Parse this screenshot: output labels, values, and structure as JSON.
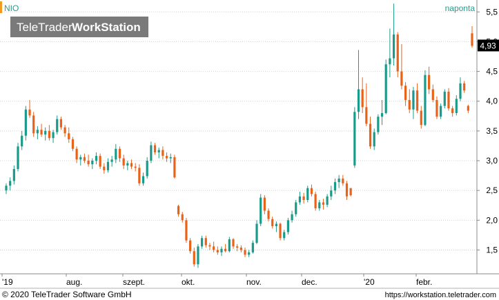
{
  "header": {
    "symbol": "NIO",
    "interval": "naponta",
    "logo": {
      "brand": "TeleTrader",
      "product": "WorkStation"
    }
  },
  "footer": {
    "copyright": "© 2020 TeleTrader Software GmbH",
    "url": "https://workstation.teletrader.com"
  },
  "colors": {
    "up": "#1a9a8a",
    "down": "#e8621a",
    "grid": "#d0d0d0",
    "header_text": "#2a9a88",
    "accent_bar": "#f29a1e",
    "price_label_bg": "#000000",
    "logo_bg": "#7a7a7a"
  },
  "chart_data": {
    "type": "candlestick",
    "title": "NIO",
    "interval": "naponta",
    "current_price_label": "4,93",
    "current_price": 4.93,
    "ylim": [
      1.1,
      5.7
    ],
    "yticks": [
      1.5,
      2.0,
      2.5,
      3.0,
      3.5,
      4.0,
      4.5,
      5.0,
      5.5
    ],
    "ytick_labels": [
      "1,5",
      "2,0",
      "2,5",
      "3,0",
      "3,5",
      "4,0",
      "4,5",
      "5,0",
      "5,5"
    ],
    "xtick_labels": [
      "'19",
      "aug.",
      "szept.",
      "okt.",
      "nov.",
      "dec.",
      "'20",
      "febr."
    ],
    "grid": true,
    "candles": [
      [
        2.5,
        2.62,
        2.44,
        2.58
      ],
      [
        2.58,
        2.72,
        2.5,
        2.66
      ],
      [
        2.66,
        2.92,
        2.6,
        2.86
      ],
      [
        2.86,
        3.3,
        2.82,
        3.24
      ],
      [
        3.24,
        3.5,
        3.18,
        3.42
      ],
      [
        3.42,
        3.92,
        3.34,
        3.86
      ],
      [
        3.86,
        4.02,
        3.72,
        3.76
      ],
      [
        3.76,
        3.82,
        3.4,
        3.46
      ],
      [
        3.46,
        3.58,
        3.36,
        3.52
      ],
      [
        3.52,
        3.62,
        3.4,
        3.44
      ],
      [
        3.44,
        3.56,
        3.34,
        3.5
      ],
      [
        3.5,
        3.6,
        3.34,
        3.38
      ],
      [
        3.38,
        3.52,
        3.3,
        3.48
      ],
      [
        3.48,
        3.76,
        3.44,
        3.7
      ],
      [
        3.7,
        3.74,
        3.52,
        3.56
      ],
      [
        3.56,
        3.6,
        3.4,
        3.46
      ],
      [
        3.46,
        3.56,
        3.3,
        3.36
      ],
      [
        3.36,
        3.4,
        3.16,
        3.2
      ],
      [
        3.2,
        3.24,
        2.96,
        3.02
      ],
      [
        3.02,
        3.1,
        2.92,
        3.06
      ],
      [
        3.06,
        3.12,
        2.96,
        3.0
      ],
      [
        3.0,
        3.1,
        2.9,
        2.94
      ],
      [
        2.94,
        3.04,
        2.86,
        3.0
      ],
      [
        3.0,
        3.14,
        2.94,
        3.08
      ],
      [
        3.08,
        3.12,
        2.86,
        2.9
      ],
      [
        2.9,
        2.96,
        2.78,
        2.84
      ],
      [
        2.84,
        3.04,
        2.8,
        2.98
      ],
      [
        2.98,
        3.08,
        2.9,
        3.02
      ],
      [
        3.02,
        3.28,
        2.96,
        3.2
      ],
      [
        3.2,
        3.24,
        2.98,
        3.04
      ],
      [
        3.04,
        3.1,
        2.86,
        2.92
      ],
      [
        2.92,
        3.0,
        2.84,
        2.96
      ],
      [
        2.96,
        3.02,
        2.86,
        2.9
      ],
      [
        2.9,
        2.96,
        2.82,
        2.88
      ],
      [
        2.88,
        2.94,
        2.58,
        2.62
      ],
      [
        2.62,
        2.8,
        2.58,
        2.74
      ],
      [
        2.74,
        3.06,
        2.7,
        3.0
      ],
      [
        3.0,
        3.32,
        2.96,
        3.26
      ],
      [
        3.26,
        3.3,
        3.1,
        3.14
      ],
      [
        3.14,
        3.22,
        3.04,
        3.18
      ],
      [
        3.18,
        3.24,
        3.02,
        3.08
      ],
      [
        3.08,
        3.14,
        2.98,
        3.04
      ],
      [
        3.04,
        3.12,
        2.96,
        3.06
      ],
      [
        3.06,
        3.1,
        2.7,
        2.72
      ],
      [
        2.24,
        2.26,
        2.06,
        2.1
      ],
      [
        2.1,
        2.14,
        1.96,
        2.0
      ],
      [
        2.0,
        2.04,
        1.62,
        1.66
      ],
      [
        1.66,
        1.7,
        1.44,
        1.48
      ],
      [
        1.48,
        1.54,
        1.22,
        1.26
      ],
      [
        1.26,
        1.6,
        1.2,
        1.56
      ],
      [
        1.56,
        1.74,
        1.52,
        1.7
      ],
      [
        1.7,
        1.74,
        1.54,
        1.58
      ],
      [
        1.58,
        1.62,
        1.5,
        1.56
      ],
      [
        1.56,
        1.64,
        1.46,
        1.5
      ],
      [
        1.5,
        1.56,
        1.42,
        1.46
      ],
      [
        1.46,
        1.56,
        1.4,
        1.52
      ],
      [
        1.52,
        1.6,
        1.46,
        1.48
      ],
      [
        1.48,
        1.72,
        1.46,
        1.68
      ],
      [
        1.68,
        1.7,
        1.52,
        1.56
      ],
      [
        1.56,
        1.6,
        1.48,
        1.54
      ],
      [
        1.54,
        1.58,
        1.46,
        1.5
      ],
      [
        1.5,
        1.54,
        1.38,
        1.42
      ],
      [
        1.42,
        1.5,
        1.38,
        1.46
      ],
      [
        1.46,
        1.66,
        1.44,
        1.62
      ],
      [
        1.62,
        2.0,
        1.6,
        1.94
      ],
      [
        1.94,
        2.44,
        1.9,
        2.38
      ],
      [
        2.38,
        2.42,
        2.1,
        2.16
      ],
      [
        2.16,
        2.2,
        1.98,
        2.02
      ],
      [
        2.02,
        2.06,
        1.86,
        1.9
      ],
      [
        1.9,
        1.98,
        1.8,
        1.94
      ],
      [
        1.94,
        1.96,
        1.66,
        1.7
      ],
      [
        1.7,
        1.84,
        1.66,
        1.8
      ],
      [
        1.8,
        2.04,
        1.76,
        2.0
      ],
      [
        2.0,
        2.16,
        1.96,
        2.1
      ],
      [
        2.1,
        2.34,
        2.06,
        2.3
      ],
      [
        2.3,
        2.48,
        2.26,
        2.4
      ],
      [
        2.4,
        2.46,
        2.28,
        2.34
      ],
      [
        2.34,
        2.58,
        2.3,
        2.54
      ],
      [
        2.54,
        2.6,
        2.4,
        2.44
      ],
      [
        2.44,
        2.48,
        2.16,
        2.2
      ],
      [
        2.2,
        2.34,
        2.16,
        2.3
      ],
      [
        2.3,
        2.36,
        2.18,
        2.26
      ],
      [
        2.26,
        2.44,
        2.22,
        2.4
      ],
      [
        2.4,
        2.58,
        2.34,
        2.5
      ],
      [
        2.5,
        2.7,
        2.44,
        2.64
      ],
      [
        2.64,
        2.76,
        2.54,
        2.7
      ],
      [
        2.7,
        2.76,
        2.58,
        2.62
      ],
      [
        2.62,
        2.66,
        2.34,
        2.4
      ],
      [
        2.54,
        2.54,
        2.4,
        2.42
      ],
      [
        2.92,
        3.9,
        2.88,
        3.82
      ],
      [
        3.82,
        4.86,
        3.7,
        4.2
      ],
      [
        4.2,
        4.4,
        3.8,
        3.9
      ],
      [
        3.9,
        4.3,
        3.58,
        3.62
      ],
      [
        3.62,
        3.74,
        3.2,
        3.24
      ],
      [
        3.24,
        3.54,
        3.18,
        3.48
      ],
      [
        3.48,
        3.78,
        3.44,
        3.74
      ],
      [
        3.74,
        4.02,
        3.6,
        3.8
      ],
      [
        3.8,
        4.7,
        3.78,
        4.62
      ],
      [
        4.62,
        5.22,
        4.4,
        4.72
      ],
      [
        4.72,
        5.64,
        4.6,
        5.12
      ],
      [
        5.12,
        5.16,
        4.4,
        4.5
      ],
      [
        4.5,
        4.96,
        4.2,
        4.26
      ],
      [
        4.26,
        4.32,
        3.92,
        4.02
      ],
      [
        4.02,
        4.2,
        3.8,
        3.86
      ],
      [
        3.86,
        4.24,
        3.7,
        4.18
      ],
      [
        4.18,
        4.3,
        3.8,
        3.84
      ],
      [
        3.84,
        3.92,
        3.54,
        3.6
      ],
      [
        3.6,
        4.52,
        3.58,
        4.44
      ],
      [
        4.44,
        4.58,
        4.12,
        4.2
      ],
      [
        4.2,
        4.28,
        3.98,
        4.02
      ],
      [
        4.02,
        4.08,
        3.7,
        3.74
      ],
      [
        3.74,
        3.96,
        3.7,
        3.92
      ],
      [
        3.92,
        4.2,
        3.88,
        4.16
      ],
      [
        4.16,
        4.22,
        3.84,
        3.88
      ],
      [
        3.88,
        3.92,
        3.74,
        3.8
      ],
      [
        3.8,
        4.1,
        3.76,
        4.04
      ],
      [
        4.04,
        4.4,
        4.0,
        4.3
      ],
      [
        4.3,
        4.34,
        4.14,
        4.18
      ],
      [
        3.92,
        3.94,
        3.8,
        3.84
      ],
      [
        5.14,
        5.26,
        4.9,
        4.93
      ]
    ]
  }
}
